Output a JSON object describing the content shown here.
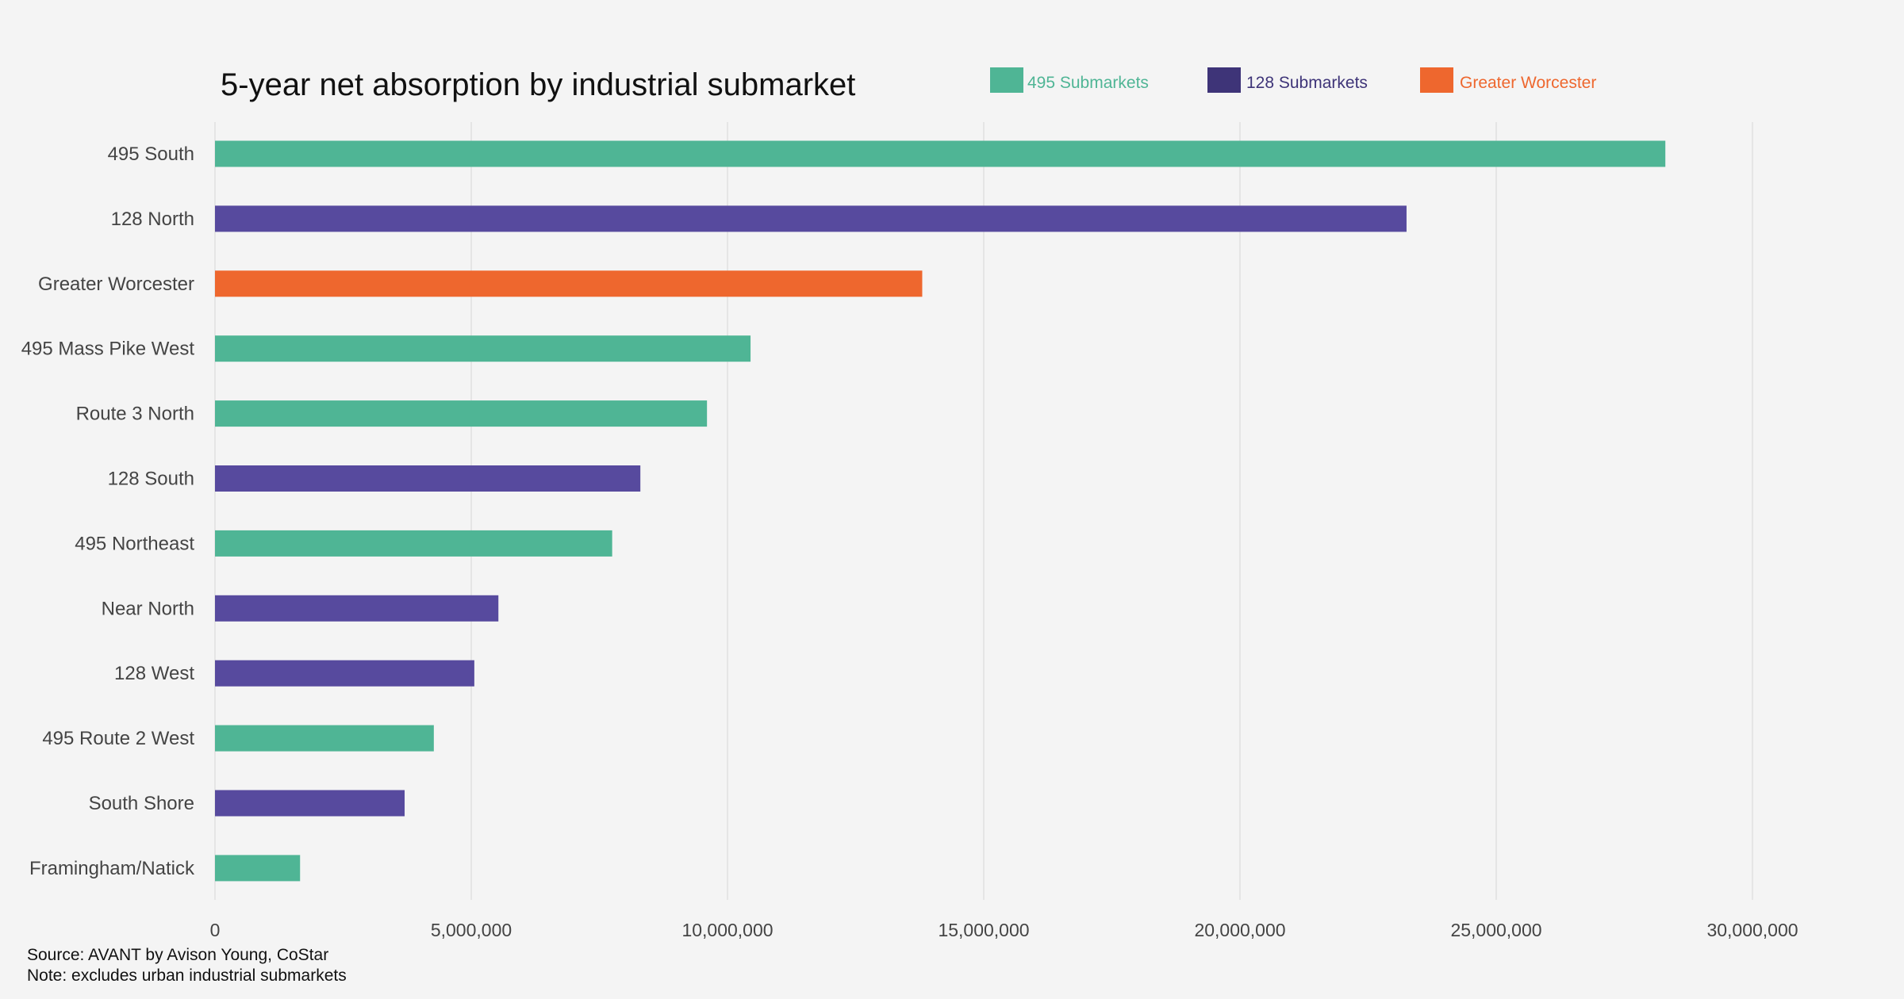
{
  "chart_data": {
    "type": "bar",
    "orientation": "horizontal",
    "title": "5-year net absorption by industrial submarket",
    "xlabel": "",
    "ylabel": "",
    "xlim": [
      0,
      32000000
    ],
    "x_ticks": [
      0,
      5000000,
      10000000,
      15000000,
      20000000,
      25000000,
      30000000
    ],
    "x_tick_labels": [
      "0",
      "5,000,000",
      "10,000,000",
      "15,000,000",
      "20,000,000",
      "25,000,000",
      "30,000,000"
    ],
    "grid": "vertical",
    "legend_position": "top",
    "legend": [
      {
        "label": "495 Submarkets",
        "swatch_color": "#4fb595",
        "text_color": "#4fb595"
      },
      {
        "label": "128 Submarkets",
        "swatch_color": "#3e3478",
        "text_color": "#3e3478"
      },
      {
        "label": "Greater Worcester",
        "swatch_color": "#ee672e",
        "text_color": "#ee672e"
      }
    ],
    "categories": [
      "495 South",
      "128 North",
      "Greater Worcester",
      "495 Mass Pike West",
      "Route 3 North",
      "128 South",
      "495 Northeast",
      "Near North",
      "128 West",
      "495 Route 2 West",
      "South Shore",
      "Framingham/Natick"
    ],
    "values": [
      28300000,
      23250000,
      13800000,
      10450000,
      9600000,
      8300000,
      7750000,
      5530000,
      5060000,
      4270000,
      3700000,
      1660000
    ],
    "groups": [
      "495 Submarkets",
      "128 Submarkets",
      "Greater Worcester",
      "495 Submarkets",
      "495 Submarkets",
      "128 Submarkets",
      "495 Submarkets",
      "128 Submarkets",
      "128 Submarkets",
      "495 Submarkets",
      "128 Submarkets",
      "495 Submarkets"
    ],
    "bar_colors": {
      "495 Submarkets": "#4fb595",
      "128 Submarkets": "#574a9e",
      "Greater Worcester": "#ee672e"
    }
  },
  "footer": {
    "source": "Source: AVANT by Avison Young, CoStar",
    "note": "Note: excludes urban industrial submarkets"
  }
}
